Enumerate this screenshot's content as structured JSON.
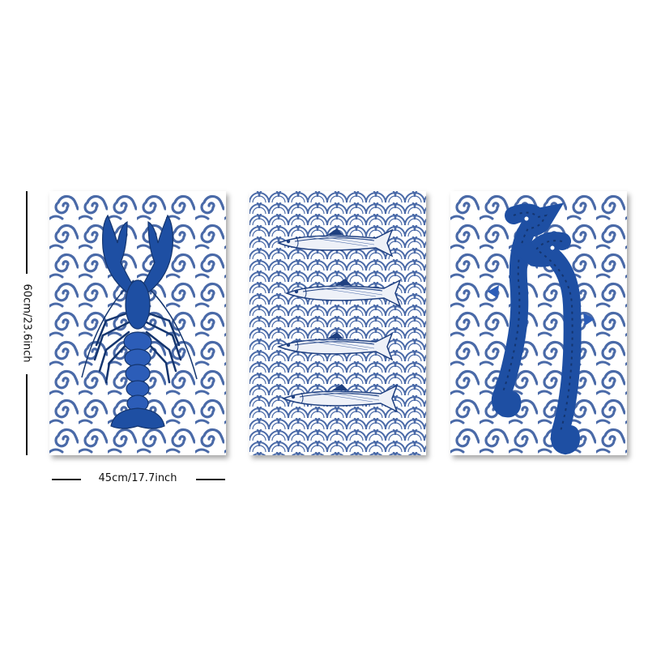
{
  "dimensions": {
    "height_label": "60cm/23.6inch",
    "width_label": "45cm/17.7inch"
  },
  "panels": [
    {
      "subject": "lobster",
      "pattern": "swirl-waves"
    },
    {
      "subject": "fish",
      "count": 4,
      "pattern": "scales"
    },
    {
      "subject": "seahorse",
      "count": 2,
      "pattern": "swirl-waves"
    }
  ],
  "colors": {
    "pattern_blue": "#4a6aa8",
    "creature_blue": "#1e4fa3",
    "deep_blue": "#14356f",
    "background": "#ffffff"
  }
}
